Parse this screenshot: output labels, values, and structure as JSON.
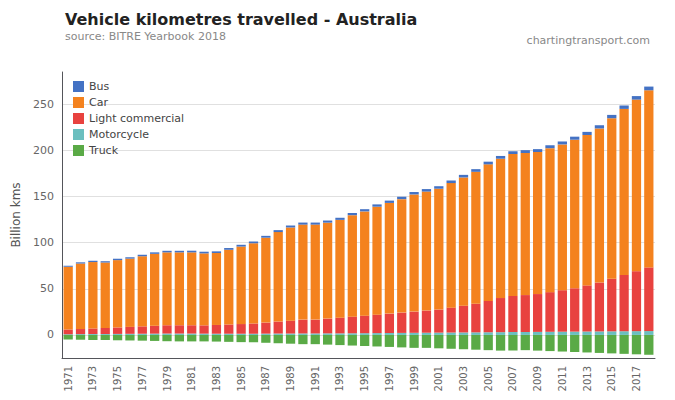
{
  "chart_data": {
    "type": "bar",
    "title": "Vehicle kilometres travelled - Australia",
    "subtitle": "source: BITRE Yearbook 2018",
    "annotations": [
      "chartingtransport.com"
    ],
    "ylabel": "Billion kms",
    "categories": [
      "1971",
      null,
      "1973",
      null,
      "1975",
      null,
      "1977",
      null,
      "1979",
      null,
      "1981",
      null,
      "1983",
      null,
      "1985",
      null,
      "1987",
      null,
      "1989",
      null,
      "1991",
      null,
      "1993",
      null,
      "1995",
      null,
      "1997",
      null,
      "1999",
      null,
      "2001",
      null,
      "2003",
      null,
      "2005",
      null,
      "2007",
      null,
      "2009",
      null,
      "2011",
      null,
      "2013",
      null,
      "2015",
      null,
      "2017",
      null
    ],
    "series": [
      {
        "name": "Truck",
        "color": "#5aaa46",
        "values": [
          -5,
          -5.2,
          -5.5,
          -5.5,
          -5.8,
          -6,
          -6.2,
          -6.5,
          -6.8,
          -7,
          -7,
          -7,
          -7.2,
          -7.5,
          -7.8,
          -8,
          -8.5,
          -9,
          -9.5,
          -10,
          -10,
          -10.5,
          -11,
          -11.5,
          -12,
          -12.5,
          -13,
          -13.5,
          -14,
          -14,
          -14.5,
          -15,
          -15.5,
          -16,
          -16.5,
          -17,
          -17,
          -16.5,
          -17,
          -17.5,
          -18,
          -18.5,
          -19,
          -19.5,
          -20,
          -20.5,
          -21,
          -21.5
        ]
      },
      {
        "name": "Motorcycle",
        "color": "#6bbfbf",
        "values": [
          0.8,
          0.9,
          1.0,
          1.0,
          1.1,
          1.2,
          1.3,
          1.4,
          1.5,
          1.5,
          1.5,
          1.4,
          1.3,
          1.3,
          1.3,
          1.4,
          1.4,
          1.5,
          1.5,
          1.6,
          1.6,
          1.7,
          1.7,
          1.8,
          1.9,
          2.0,
          2.1,
          2.2,
          2.3,
          2.4,
          2.5,
          2.6,
          2.7,
          2.8,
          2.9,
          3.0,
          3.1,
          3.2,
          3.3,
          3.4,
          3.5,
          3.6,
          3.7,
          3.8,
          3.9,
          4.0,
          4.1,
          4.2
        ]
      },
      {
        "name": "Light commercial",
        "color": "#e8423f",
        "values": [
          5,
          5.5,
          6,
          6.5,
          7,
          7.5,
          8,
          8.5,
          9,
          9,
          9,
          9,
          9.5,
          10,
          10.5,
          11,
          12,
          13,
          14,
          15,
          15,
          16,
          17,
          18,
          19,
          20,
          21,
          22,
          23,
          24,
          25,
          27,
          29,
          31,
          34,
          37,
          39,
          40,
          41,
          43,
          45,
          47,
          50,
          53,
          57,
          61,
          65,
          69
        ]
      },
      {
        "name": "Car",
        "color": "#f4821e",
        "values": [
          68,
          71,
          72,
          71,
          73,
          74,
          76,
          78,
          79,
          79,
          79,
          78,
          78,
          81,
          84,
          87,
          92,
          97,
          101,
          103,
          103,
          104,
          106,
          110,
          113,
          117,
          120,
          123,
          127,
          129,
          131,
          135,
          139,
          143,
          148,
          151,
          154,
          154,
          154,
          156,
          158,
          161,
          163,
          167,
          174,
          180,
          186,
          192
        ]
      },
      {
        "name": "Bus",
        "color": "#4472c4",
        "values": [
          1.2,
          1.3,
          1.4,
          1.4,
          1.5,
          1.5,
          1.6,
          1.6,
          1.7,
          1.7,
          1.8,
          1.8,
          1.8,
          1.9,
          1.9,
          2.0,
          2.0,
          2.1,
          2.1,
          2.2,
          2.2,
          2.3,
          2.3,
          2.4,
          2.4,
          2.5,
          2.5,
          2.6,
          2.6,
          2.7,
          2.7,
          2.8,
          2.8,
          2.9,
          2.9,
          3.0,
          3.0,
          3.1,
          3.1,
          3.2,
          3.2,
          3.3,
          3.4,
          3.5,
          3.6,
          3.7,
          3.8,
          4.0
        ]
      }
    ],
    "stacked": true,
    "ylim": [
      -25,
      285
    ],
    "yticks": [
      0,
      50,
      100,
      150,
      200,
      250
    ],
    "grid": true,
    "legend": "upper left"
  }
}
